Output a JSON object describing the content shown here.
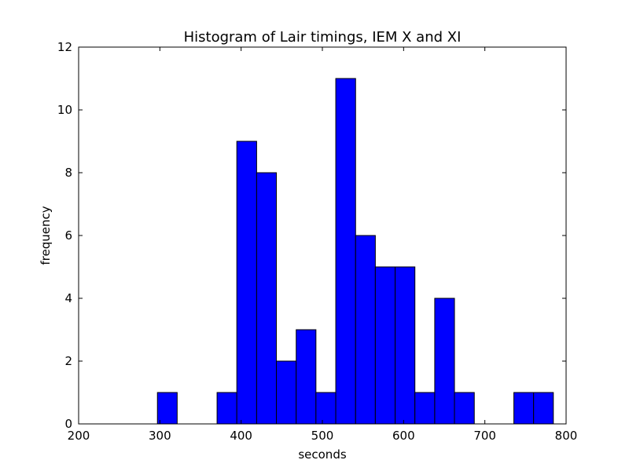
{
  "chart_data": {
    "type": "bar",
    "title": "Histogram of Lair timings, IEM X and XI",
    "xlabel": "seconds",
    "ylabel": "frequency",
    "xlim": [
      200,
      800
    ],
    "ylim": [
      0,
      12
    ],
    "x_ticks": [
      "200",
      "300",
      "400",
      "500",
      "600",
      "700",
      "800"
    ],
    "y_ticks": [
      "0",
      "2",
      "4",
      "6",
      "8",
      "10",
      "12"
    ],
    "bar_color": "#0000ff",
    "grid": false,
    "bins": [
      {
        "start": 297.0,
        "end": 321.3,
        "count": 1
      },
      {
        "start": 370.4,
        "end": 394.7,
        "count": 1
      },
      {
        "start": 394.7,
        "end": 419.1,
        "count": 9
      },
      {
        "start": 419.1,
        "end": 443.4,
        "count": 8
      },
      {
        "start": 443.4,
        "end": 467.8,
        "count": 2
      },
      {
        "start": 467.8,
        "end": 492.1,
        "count": 3
      },
      {
        "start": 492.1,
        "end": 516.5,
        "count": 1
      },
      {
        "start": 516.5,
        "end": 540.9,
        "count": 11
      },
      {
        "start": 540.9,
        "end": 565.2,
        "count": 6
      },
      {
        "start": 565.2,
        "end": 589.6,
        "count": 5
      },
      {
        "start": 589.6,
        "end": 613.9,
        "count": 5
      },
      {
        "start": 613.9,
        "end": 638.3,
        "count": 1
      },
      {
        "start": 638.3,
        "end": 662.6,
        "count": 4
      },
      {
        "start": 662.6,
        "end": 687.0,
        "count": 1
      },
      {
        "start": 735.7,
        "end": 760.0,
        "count": 1
      },
      {
        "start": 760.0,
        "end": 784.3,
        "count": 1
      }
    ]
  }
}
